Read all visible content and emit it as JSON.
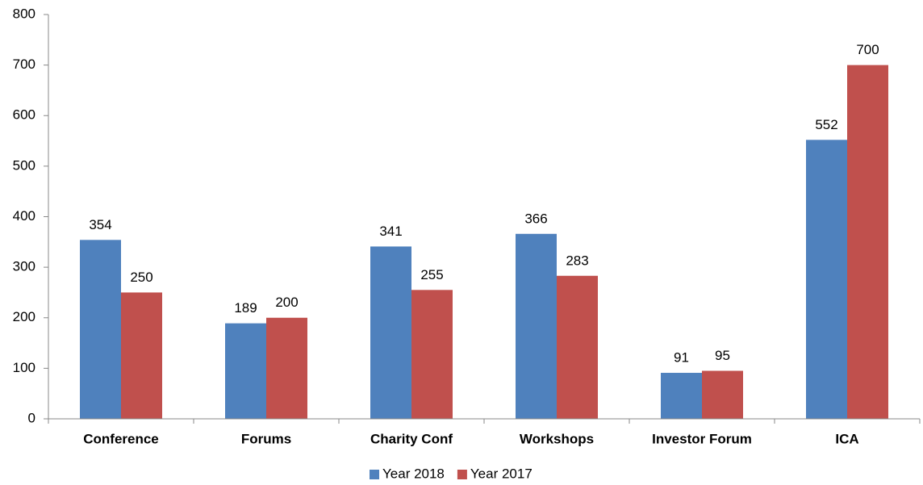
{
  "chart_data": {
    "type": "bar",
    "categories": [
      "Conference",
      "Forums",
      "Charity Conf",
      "Workshops",
      "Investor Forum",
      "ICA"
    ],
    "series": [
      {
        "name": "Year 2018",
        "color": "#4f81bd",
        "values": [
          354,
          189,
          341,
          366,
          91,
          552
        ]
      },
      {
        "name": "Year 2017",
        "color": "#c0504d",
        "values": [
          250,
          200,
          255,
          283,
          95,
          700
        ]
      }
    ],
    "ylim": [
      0,
      800
    ],
    "yticks": [
      0,
      100,
      200,
      300,
      400,
      500,
      600,
      700,
      800
    ],
    "grid": false,
    "legend": "bottom"
  }
}
